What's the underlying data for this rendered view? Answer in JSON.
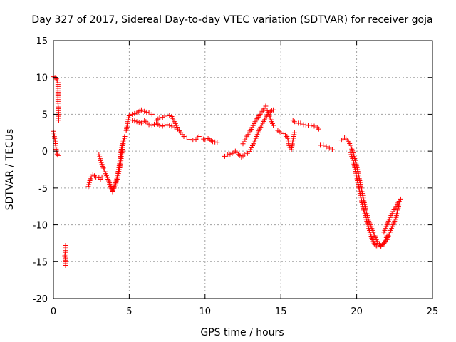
{
  "chart_data": {
    "type": "scatter",
    "title": "Day 327 of 2017, Sidereal Day-to-day VTEC variation (SDTVAR) for receiver goja",
    "xlabel": "GPS time / hours",
    "ylabel": "SDTVAR / TECUs",
    "xlim": [
      0,
      25
    ],
    "ylim": [
      -20,
      15
    ],
    "xticks": [
      0,
      5,
      10,
      15,
      20,
      25
    ],
    "yticks": [
      15,
      10,
      5,
      0,
      -5,
      -10,
      -15,
      -20
    ],
    "grid": true,
    "marker": "+",
    "color": "#ff0000",
    "series": [
      {
        "name": "goja",
        "segments": [
          [
            [
              0.0,
              10.1
            ],
            [
              0.1,
              10.0
            ],
            [
              0.2,
              9.8
            ],
            [
              0.3,
              9.3
            ],
            [
              0.3,
              8.0
            ],
            [
              0.3,
              6.5
            ],
            [
              0.35,
              5.0
            ],
            [
              0.35,
              4.2
            ]
          ],
          [
            [
              0.0,
              2.7
            ],
            [
              0.05,
              2.2
            ],
            [
              0.1,
              1.5
            ],
            [
              0.15,
              0.8
            ],
            [
              0.2,
              0.0
            ],
            [
              0.25,
              -0.4
            ],
            [
              0.3,
              -0.6
            ]
          ],
          [
            [
              0.8,
              -12.8
            ],
            [
              0.8,
              -13.5
            ],
            [
              0.75,
              -14.2
            ],
            [
              0.8,
              -14.8
            ],
            [
              0.8,
              -15.5
            ]
          ],
          [
            [
              2.3,
              -4.8
            ],
            [
              2.4,
              -4.0
            ],
            [
              2.5,
              -3.5
            ],
            [
              2.6,
              -3.2
            ],
            [
              2.8,
              -3.5
            ],
            [
              3.0,
              -3.6
            ],
            [
              3.1,
              -3.8
            ],
            [
              3.2,
              -3.5
            ]
          ],
          [
            [
              3.0,
              -0.5
            ],
            [
              3.2,
              -1.8
            ],
            [
              3.4,
              -2.8
            ],
            [
              3.6,
              -3.8
            ],
            [
              3.8,
              -4.8
            ],
            [
              3.9,
              -5.4
            ],
            [
              4.0,
              -5.0
            ],
            [
              4.1,
              -4.6
            ],
            [
              4.2,
              -3.5
            ],
            [
              4.3,
              -2.5
            ],
            [
              4.4,
              -1.2
            ],
            [
              4.5,
              0.5
            ],
            [
              4.6,
              1.5
            ]
          ],
          [
            [
              3.7,
              -4.5
            ],
            [
              3.9,
              -5.5
            ],
            [
              4.0,
              -4.8
            ],
            [
              4.2,
              -3.8
            ],
            [
              4.4,
              -2.0
            ],
            [
              4.5,
              -0.5
            ],
            [
              4.6,
              1.0
            ],
            [
              4.7,
              2.0
            ]
          ],
          [
            [
              4.8,
              2.8
            ],
            [
              4.9,
              4.0
            ],
            [
              5.0,
              4.8
            ],
            [
              5.2,
              5.0
            ],
            [
              5.5,
              5.2
            ],
            [
              5.8,
              5.6
            ],
            [
              6.0,
              5.4
            ],
            [
              6.3,
              5.2
            ],
            [
              6.5,
              5.0
            ]
          ],
          [
            [
              5.2,
              4.2
            ],
            [
              5.5,
              4.0
            ],
            [
              5.8,
              3.8
            ],
            [
              6.0,
              4.2
            ],
            [
              6.3,
              3.6
            ],
            [
              6.5,
              3.5
            ],
            [
              6.8,
              3.8
            ],
            [
              7.0,
              3.5
            ],
            [
              7.2,
              3.4
            ],
            [
              7.5,
              3.6
            ],
            [
              7.8,
              3.4
            ],
            [
              8.0,
              3.2
            ]
          ],
          [
            [
              6.8,
              4.2
            ],
            [
              7.0,
              4.5
            ],
            [
              7.2,
              4.6
            ],
            [
              7.5,
              4.9
            ],
            [
              7.8,
              4.7
            ],
            [
              8.0,
              4.0
            ],
            [
              8.2,
              3.0
            ],
            [
              8.4,
              2.5
            ],
            [
              8.6,
              2.0
            ],
            [
              8.8,
              1.8
            ],
            [
              9.0,
              1.6
            ],
            [
              9.2,
              1.5
            ],
            [
              9.4,
              1.6
            ],
            [
              9.6,
              2.0
            ],
            [
              9.8,
              1.8
            ],
            [
              10.0,
              1.5
            ],
            [
              10.2,
              1.7
            ],
            [
              10.5,
              1.3
            ],
            [
              10.8,
              1.2
            ]
          ],
          [
            [
              11.3,
              -0.7
            ],
            [
              11.5,
              -0.5
            ],
            [
              11.8,
              -0.3
            ],
            [
              12.0,
              0.0
            ],
            [
              12.2,
              -0.4
            ],
            [
              12.4,
              -0.8
            ],
            [
              12.6,
              -0.5
            ],
            [
              12.8,
              -0.3
            ],
            [
              13.0,
              0.2
            ],
            [
              13.2,
              1.0
            ],
            [
              13.4,
              2.0
            ],
            [
              13.6,
              3.0
            ],
            [
              13.8,
              3.8
            ],
            [
              14.0,
              4.5
            ],
            [
              14.2,
              5.2
            ],
            [
              14.4,
              5.5
            ],
            [
              14.5,
              5.6
            ]
          ],
          [
            [
              12.5,
              1.0
            ],
            [
              12.7,
              1.8
            ],
            [
              12.9,
              2.5
            ],
            [
              13.1,
              3.2
            ],
            [
              13.3,
              4.0
            ],
            [
              13.5,
              4.6
            ],
            [
              13.7,
              5.2
            ],
            [
              13.9,
              5.8
            ],
            [
              14.0,
              6.1
            ]
          ],
          [
            [
              14.1,
              5.5
            ],
            [
              14.2,
              5.0
            ],
            [
              14.3,
              4.5
            ],
            [
              14.4,
              4.0
            ],
            [
              14.5,
              3.5
            ]
          ],
          [
            [
              14.8,
              2.8
            ],
            [
              15.0,
              2.5
            ],
            [
              15.2,
              2.4
            ],
            [
              15.4,
              2.0
            ],
            [
              15.5,
              1.5
            ],
            [
              15.5,
              1.0
            ],
            [
              15.6,
              0.5
            ],
            [
              15.7,
              0.2
            ],
            [
              15.8,
              1.5
            ],
            [
              15.9,
              2.5
            ]
          ],
          [
            [
              15.8,
              4.2
            ],
            [
              16.0,
              3.8
            ],
            [
              16.3,
              3.8
            ],
            [
              16.5,
              3.6
            ],
            [
              16.8,
              3.5
            ],
            [
              17.0,
              3.5
            ],
            [
              17.2,
              3.4
            ],
            [
              17.4,
              3.2
            ],
            [
              17.5,
              3.0
            ]
          ],
          [
            [
              17.6,
              0.8
            ],
            [
              17.8,
              0.8
            ],
            [
              18.0,
              0.6
            ],
            [
              18.2,
              0.4
            ],
            [
              18.4,
              0.2
            ]
          ],
          [
            [
              19.0,
              1.5
            ],
            [
              19.2,
              1.8
            ],
            [
              19.4,
              1.5
            ],
            [
              19.6,
              0.8
            ],
            [
              19.8,
              -0.5
            ],
            [
              20.0,
              -2.0
            ],
            [
              20.2,
              -4.0
            ],
            [
              20.4,
              -6.0
            ],
            [
              20.6,
              -8.0
            ],
            [
              20.8,
              -9.5
            ],
            [
              21.0,
              -10.5
            ],
            [
              21.2,
              -11.5
            ],
            [
              21.4,
              -12.5
            ],
            [
              21.6,
              -12.8
            ],
            [
              21.8,
              -12.6
            ],
            [
              22.0,
              -11.5
            ]
          ],
          [
            [
              19.6,
              -0.2
            ],
            [
              19.8,
              -1.5
            ],
            [
              20.0,
              -3.5
            ],
            [
              20.2,
              -5.5
            ],
            [
              20.4,
              -7.5
            ],
            [
              20.6,
              -9.0
            ],
            [
              20.8,
              -10.5
            ],
            [
              21.0,
              -11.8
            ],
            [
              21.2,
              -12.7
            ],
            [
              21.4,
              -13.0
            ],
            [
              21.6,
              -12.9
            ],
            [
              21.8,
              -12.5
            ],
            [
              22.0,
              -12.0
            ]
          ],
          [
            [
              21.8,
              -11.0
            ],
            [
              22.0,
              -10.0
            ],
            [
              22.2,
              -9.0
            ],
            [
              22.4,
              -8.2
            ],
            [
              22.6,
              -7.5
            ],
            [
              22.8,
              -6.8
            ],
            [
              22.9,
              -6.5
            ]
          ],
          [
            [
              22.0,
              -12.0
            ],
            [
              22.2,
              -11.0
            ],
            [
              22.4,
              -10.0
            ],
            [
              22.6,
              -9.0
            ],
            [
              22.7,
              -8.0
            ],
            [
              22.8,
              -7.2
            ],
            [
              22.9,
              -6.6
            ]
          ]
        ]
      }
    ]
  }
}
